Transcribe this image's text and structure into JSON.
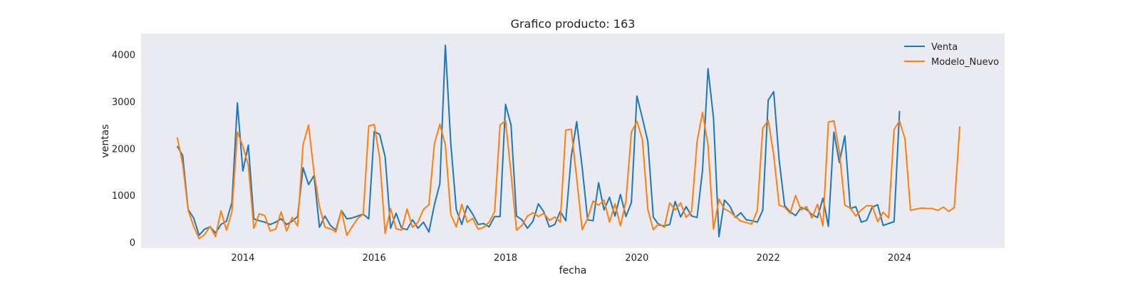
{
  "chart_data": {
    "type": "line",
    "title": "Grafico producto: 163",
    "xlabel": "fecha",
    "ylabel": "ventas",
    "xlim": [
      2012.45,
      2025.6
    ],
    "ylim": [
      -120,
      4450
    ],
    "x_ticks": [
      2014,
      2016,
      2018,
      2020,
      2022,
      2024
    ],
    "y_ticks": [
      0,
      1000,
      2000,
      3000,
      4000
    ],
    "grid": false,
    "legend_position": "top-right",
    "x_start": 2013.0,
    "x_step_months": 1,
    "series": [
      {
        "name": "Venta",
        "color": "#1f77b4",
        "values": [
          2050,
          1850,
          700,
          520,
          150,
          280,
          330,
          200,
          380,
          450,
          850,
          2970,
          1520,
          2070,
          500,
          460,
          430,
          380,
          430,
          500,
          380,
          450,
          550,
          1590,
          1230,
          1420,
          320,
          560,
          360,
          260,
          680,
          500,
          520,
          560,
          600,
          500,
          2360,
          2300,
          1820,
          300,
          620,
          300,
          270,
          480,
          300,
          430,
          220,
          800,
          1250,
          4200,
          2100,
          700,
          380,
          780,
          600,
          380,
          400,
          330,
          550,
          550,
          2940,
          2500,
          560,
          480,
          300,
          450,
          820,
          650,
          330,
          380,
          660,
          460,
          1820,
          2570,
          1600,
          480,
          460,
          1270,
          690,
          960,
          560,
          1020,
          550,
          850,
          3120,
          2650,
          2150,
          540,
          370,
          350,
          380,
          870,
          540,
          760,
          560,
          530,
          1540,
          3700,
          2650,
          120,
          900,
          770,
          530,
          630,
          480,
          460,
          430,
          680,
          3030,
          3210,
          1750,
          780,
          650,
          570,
          740,
          700,
          590,
          530,
          940,
          340,
          2350,
          1700,
          2270,
          720,
          760,
          430,
          470,
          750,
          800,
          360,
          400,
          440,
          2800
        ]
      },
      {
        "name": "Modelo_Nuevo",
        "color": "#ff7f0e",
        "values": [
          2240,
          1670,
          690,
          340,
          80,
          160,
          340,
          120,
          670,
          260,
          650,
          2350,
          2050,
          1640,
          300,
          610,
          570,
          240,
          280,
          650,
          240,
          530,
          350,
          2080,
          2500,
          1490,
          760,
          320,
          290,
          220,
          680,
          150,
          340,
          510,
          600,
          2480,
          2510,
          1800,
          190,
          720,
          290,
          260,
          710,
          320,
          430,
          700,
          800,
          2100,
          2520,
          2080,
          590,
          330,
          810,
          430,
          510,
          280,
          320,
          430,
          650,
          2500,
          2590,
          1470,
          260,
          360,
          560,
          630,
          550,
          620,
          470,
          540,
          430,
          2390,
          2410,
          1370,
          270,
          510,
          880,
          790,
          900,
          430,
          820,
          350,
          880,
          2350,
          2580,
          2200,
          700,
          270,
          400,
          320,
          840,
          690,
          840,
          530,
          660,
          2150,
          2770,
          2070,
          280,
          920,
          710,
          650,
          550,
          450,
          420,
          390,
          680,
          2430,
          2600,
          1860,
          790,
          750,
          620,
          1000,
          690,
          760,
          520,
          810,
          350,
          2560,
          2590,
          1930,
          790,
          730,
          560,
          690,
          780,
          780,
          440,
          640,
          520,
          2400,
          2590,
          2200,
          680,
          710,
          730,
          720,
          720,
          680,
          750,
          660,
          740,
          2470
        ]
      }
    ]
  }
}
